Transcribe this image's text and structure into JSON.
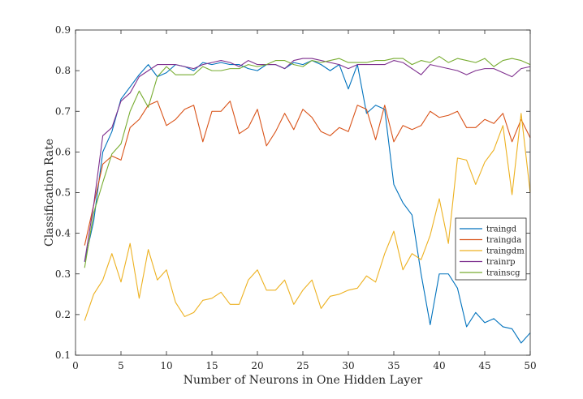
{
  "chart_data": {
    "type": "line",
    "title": "",
    "xlabel": "Number of Neurons in One Hidden Layer",
    "ylabel": "Classification Rate",
    "xlim": [
      0,
      50
    ],
    "ylim": [
      0.1,
      0.9
    ],
    "xticks": [
      0,
      5,
      10,
      15,
      20,
      25,
      30,
      35,
      40,
      45,
      50
    ],
    "yticks": [
      0.1,
      0.2,
      0.3,
      0.4,
      0.5,
      0.6,
      0.7,
      0.8,
      0.9
    ],
    "xtick_labels": [
      "0",
      "5",
      "10",
      "15",
      "20",
      "25",
      "30",
      "35",
      "40",
      "45",
      "50"
    ],
    "ytick_labels": [
      "0.1",
      "0.2",
      "0.3",
      "0.4",
      "0.5",
      "0.6",
      "0.7",
      "0.8",
      "0.9"
    ],
    "grid": false,
    "legend_position": "right",
    "x": [
      1,
      2,
      3,
      4,
      5,
      6,
      7,
      8,
      9,
      10,
      11,
      12,
      13,
      14,
      15,
      16,
      17,
      18,
      19,
      20,
      21,
      22,
      23,
      24,
      25,
      26,
      27,
      28,
      29,
      30,
      31,
      32,
      33,
      34,
      35,
      36,
      37,
      38,
      39,
      40,
      41,
      42,
      43,
      44,
      45,
      46,
      47,
      48,
      49,
      50
    ],
    "series": [
      {
        "name": "traingd",
        "color": "#0072BD",
        "values": [
          0.33,
          0.43,
          0.6,
          0.65,
          0.73,
          0.76,
          0.79,
          0.815,
          0.785,
          0.795,
          0.815,
          0.81,
          0.8,
          0.82,
          0.815,
          0.82,
          0.815,
          0.815,
          0.805,
          0.8,
          0.815,
          0.815,
          0.805,
          0.82,
          0.815,
          0.825,
          0.815,
          0.8,
          0.815,
          0.755,
          0.815,
          0.695,
          0.715,
          0.705,
          0.52,
          0.475,
          0.445,
          0.3,
          0.175,
          0.3,
          0.3,
          0.265,
          0.17,
          0.205,
          0.18,
          0.19,
          0.17,
          0.165,
          0.13,
          0.155
        ]
      },
      {
        "name": "traingda",
        "color": "#D95319",
        "values": [
          0.37,
          0.47,
          0.57,
          0.59,
          0.58,
          0.66,
          0.68,
          0.715,
          0.725,
          0.665,
          0.68,
          0.705,
          0.715,
          0.625,
          0.7,
          0.7,
          0.725,
          0.645,
          0.66,
          0.705,
          0.615,
          0.65,
          0.695,
          0.655,
          0.705,
          0.685,
          0.65,
          0.64,
          0.66,
          0.65,
          0.715,
          0.705,
          0.63,
          0.715,
          0.625,
          0.665,
          0.655,
          0.665,
          0.7,
          0.685,
          0.69,
          0.7,
          0.66,
          0.66,
          0.68,
          0.67,
          0.695,
          0.625,
          0.68,
          0.635
        ]
      },
      {
        "name": "traingdm",
        "color": "#EDB120",
        "values": [
          0.185,
          0.25,
          0.285,
          0.35,
          0.28,
          0.375,
          0.24,
          0.36,
          0.285,
          0.31,
          0.23,
          0.195,
          0.205,
          0.235,
          0.24,
          0.255,
          0.225,
          0.225,
          0.285,
          0.31,
          0.26,
          0.26,
          0.285,
          0.225,
          0.26,
          0.285,
          0.215,
          0.245,
          0.25,
          0.26,
          0.265,
          0.295,
          0.28,
          0.35,
          0.405,
          0.31,
          0.35,
          0.335,
          0.395,
          0.485,
          0.375,
          0.585,
          0.58,
          0.52,
          0.575,
          0.605,
          0.665,
          0.495,
          0.695,
          0.5
        ]
      },
      {
        "name": "trainrp",
        "color": "#7E2F8E",
        "values": [
          0.33,
          0.47,
          0.64,
          0.66,
          0.725,
          0.745,
          0.785,
          0.8,
          0.815,
          0.815,
          0.815,
          0.81,
          0.805,
          0.815,
          0.82,
          0.825,
          0.82,
          0.81,
          0.825,
          0.815,
          0.815,
          0.815,
          0.805,
          0.825,
          0.83,
          0.83,
          0.825,
          0.82,
          0.815,
          0.805,
          0.815,
          0.815,
          0.815,
          0.815,
          0.825,
          0.82,
          0.805,
          0.79,
          0.815,
          0.81,
          0.805,
          0.8,
          0.79,
          0.8,
          0.805,
          0.805,
          0.795,
          0.785,
          0.805,
          0.81
        ]
      },
      {
        "name": "trainscg",
        "color": "#77AC30",
        "values": [
          0.315,
          0.45,
          0.525,
          0.595,
          0.62,
          0.7,
          0.75,
          0.71,
          0.785,
          0.81,
          0.79,
          0.79,
          0.79,
          0.81,
          0.8,
          0.8,
          0.805,
          0.805,
          0.815,
          0.81,
          0.815,
          0.825,
          0.825,
          0.815,
          0.81,
          0.825,
          0.82,
          0.825,
          0.83,
          0.82,
          0.82,
          0.82,
          0.825,
          0.825,
          0.83,
          0.83,
          0.815,
          0.825,
          0.82,
          0.835,
          0.82,
          0.83,
          0.825,
          0.82,
          0.83,
          0.81,
          0.825,
          0.83,
          0.825,
          0.815
        ]
      }
    ]
  }
}
